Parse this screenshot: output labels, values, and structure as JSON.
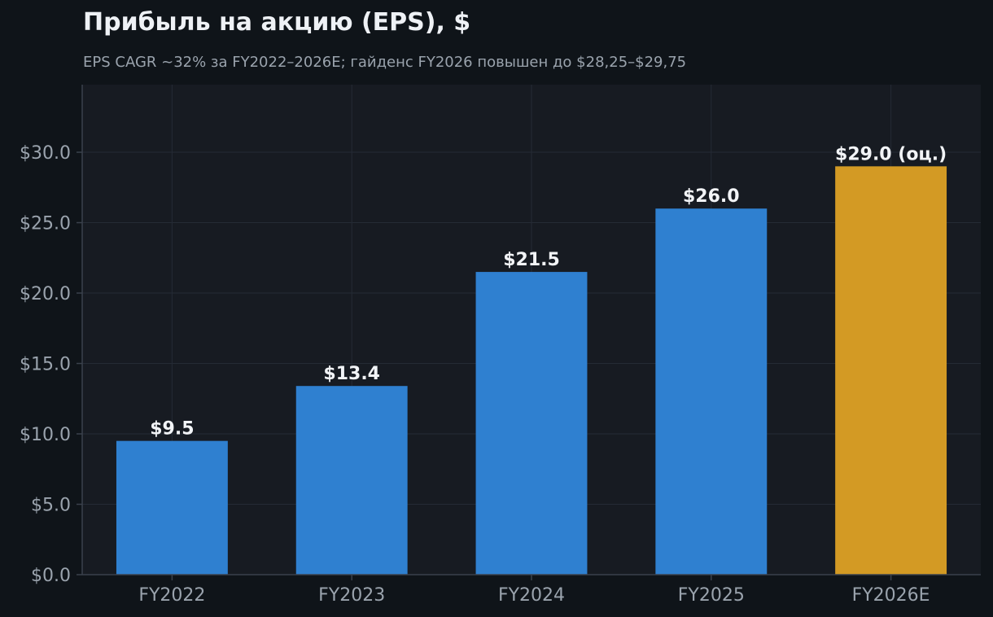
{
  "colors": {
    "background": "#0f1419",
    "plot_background": "#171b22",
    "grid": "#252b35",
    "axis": "#3a414c",
    "actual_bar": "#2f80d0",
    "estimate_bar": "#d39a24",
    "text_primary": "#eef1f5",
    "text_secondary": "#9aa3ad"
  },
  "chart_data": {
    "type": "bar",
    "title": "Прибыль на акцию (EPS), $",
    "subtitle": "EPS CAGR ~32% за FY2022–2026E; гайденс FY2026 повышен до $28,25–$29,75",
    "xlabel": "",
    "ylabel": "",
    "categories": [
      "FY2022",
      "FY2023",
      "FY2024",
      "FY2025",
      "FY2026E"
    ],
    "values": [
      9.5,
      13.4,
      21.5,
      26.0,
      29.0
    ],
    "estimate_flags": [
      false,
      false,
      false,
      false,
      true
    ],
    "data_labels": [
      "$9.5",
      "$13.4",
      "$21.5",
      "$26.0",
      "$29.0 (оц.)"
    ],
    "y_ticks": [
      0,
      5,
      10,
      15,
      20,
      25,
      30
    ],
    "y_tick_labels": [
      "$0.0",
      "$5.0",
      "$10.0",
      "$15.0",
      "$20.0",
      "$25.0",
      "$30.0"
    ],
    "ylim": [
      0,
      34.8
    ],
    "grid": true,
    "legend": "none"
  }
}
